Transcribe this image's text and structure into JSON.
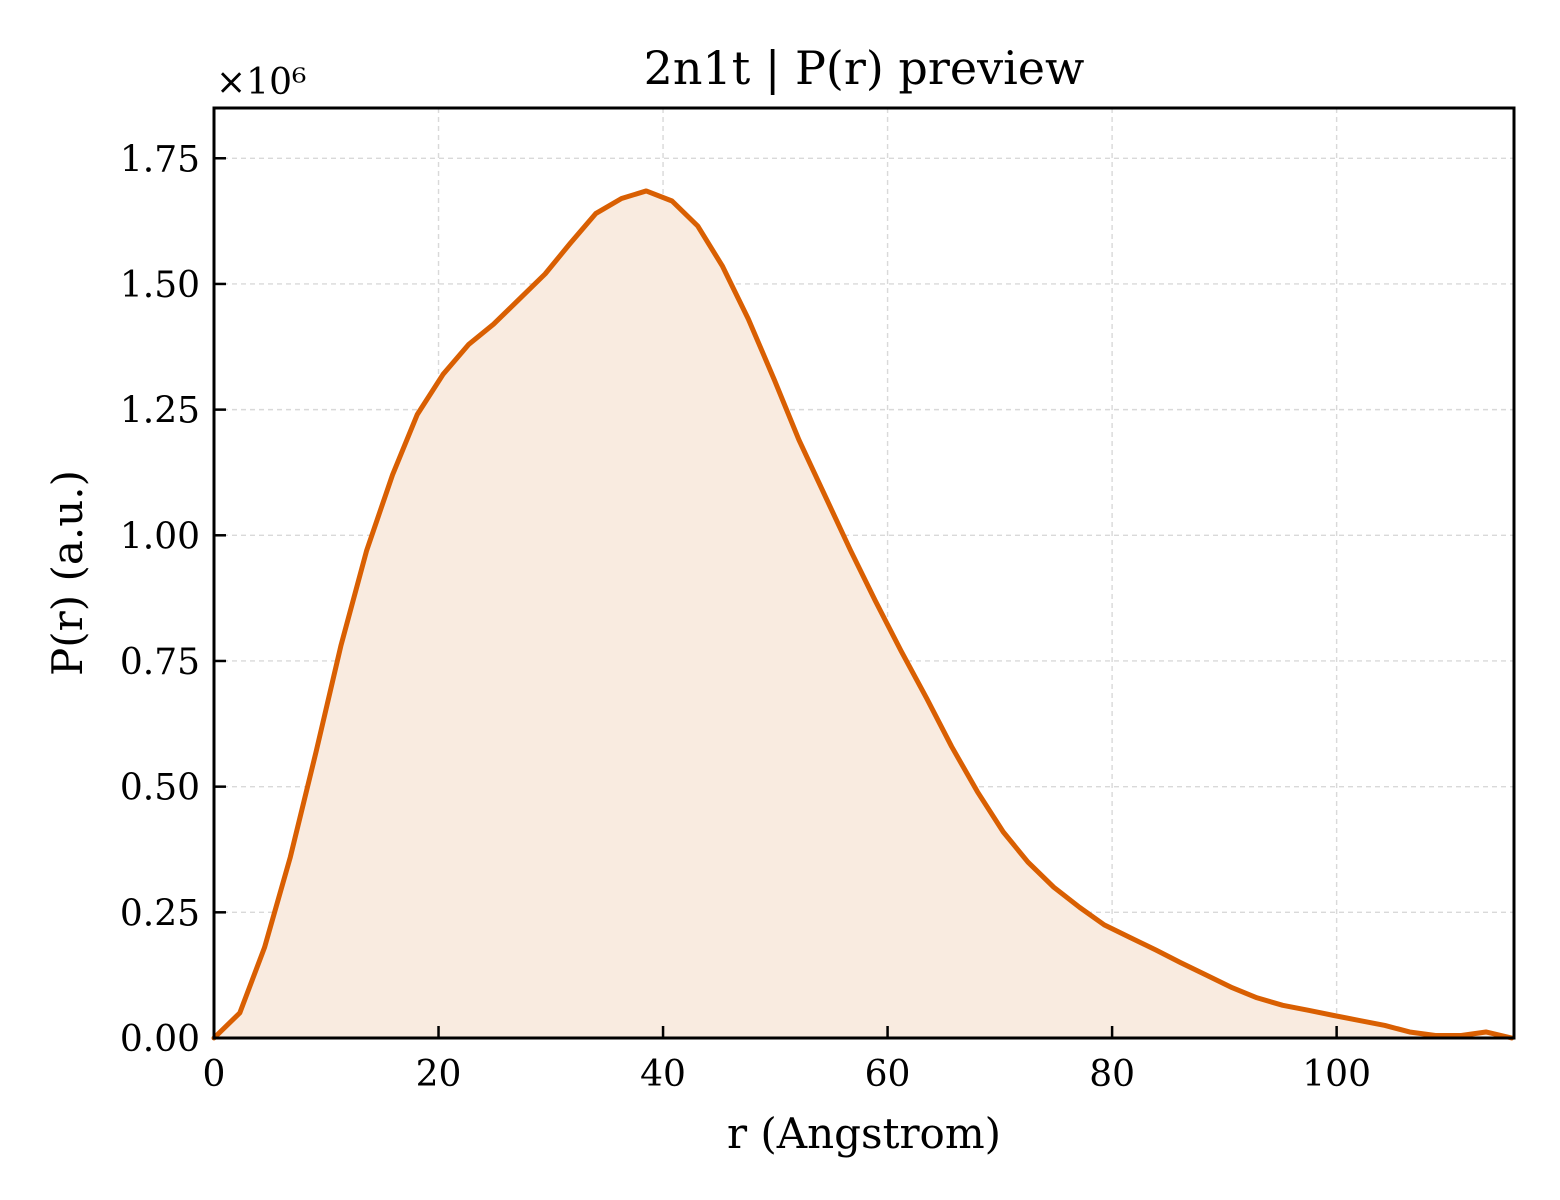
{
  "chart_data": {
    "type": "area",
    "title": "2n1t | P(r) preview",
    "xlabel": "r (Angstrom)",
    "ylabel": "P(r) (a.u.)",
    "y_multiplier_label": "×10⁶",
    "x_ticks": [
      0,
      20,
      40,
      60,
      80,
      100
    ],
    "x_tick_labels": [
      "0",
      "20",
      "40",
      "60",
      "80",
      "100"
    ],
    "y_ticks": [
      0,
      0.25,
      0.5,
      0.75,
      1.0,
      1.25,
      1.5,
      1.75
    ],
    "y_tick_labels": [
      "0.00",
      "0.25",
      "0.50",
      "0.75",
      "1.00",
      "1.25",
      "1.50",
      "1.75"
    ],
    "xlim": [
      0,
      115.8
    ],
    "ylim": [
      0,
      1.85
    ],
    "grid": true,
    "colors": {
      "line": "#d95f02",
      "fill": "#f9ebe0",
      "grid": "#d9d9d9",
      "axis": "#000000"
    },
    "series": [
      {
        "x": [
          0,
          2.3,
          4.5,
          6.8,
          9.1,
          11.3,
          13.6,
          15.9,
          18.1,
          20.4,
          22.7,
          24.9,
          27.2,
          29.5,
          31.7,
          34.0,
          36.3,
          38.5,
          40.8,
          43.1,
          45.3,
          47.6,
          49.9,
          52.1,
          54.4,
          56.7,
          58.9,
          61.2,
          63.5,
          65.7,
          68.0,
          70.3,
          72.5,
          74.8,
          77.1,
          79.3,
          81.6,
          83.9,
          86.1,
          88.4,
          90.7,
          92.9,
          95.2,
          97.5,
          99.7,
          102.0,
          104.3,
          106.5,
          108.8,
          111.1,
          113.3,
          115.6
        ],
        "y": [
          0.0,
          0.05,
          0.18,
          0.36,
          0.57,
          0.78,
          0.97,
          1.12,
          1.24,
          1.32,
          1.38,
          1.42,
          1.47,
          1.52,
          1.58,
          1.64,
          1.67,
          1.685,
          1.665,
          1.615,
          1.535,
          1.43,
          1.31,
          1.19,
          1.08,
          0.97,
          0.87,
          0.77,
          0.675,
          0.58,
          0.49,
          0.41,
          0.35,
          0.3,
          0.26,
          0.225,
          0.2,
          0.175,
          0.15,
          0.125,
          0.1,
          0.08,
          0.065,
          0.055,
          0.045,
          0.035,
          0.025,
          0.012,
          0.005,
          0.005,
          0.012,
          0.0
        ]
      }
    ]
  }
}
